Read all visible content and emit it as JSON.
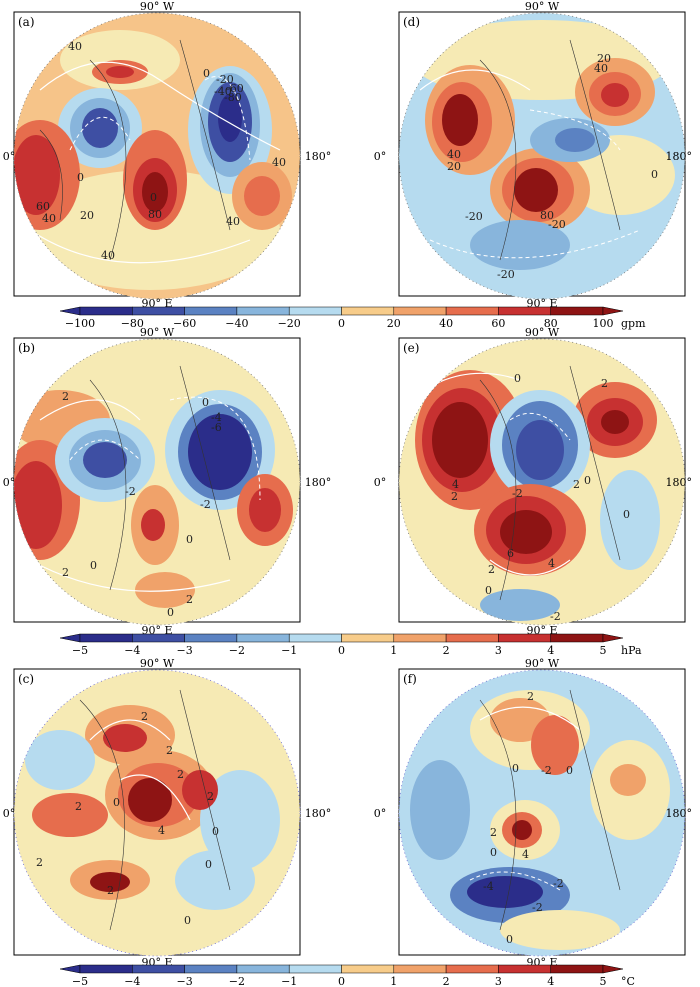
{
  "figure": {
    "rows": [
      {
        "panels": [
          {
            "letter": "(a)",
            "top_label": "90° W",
            "bottom_label": "90° E",
            "left_label": "0°",
            "right_label": "180°",
            "contour_labels": [
              "40",
              "0",
              "-20",
              "-40",
              "-60",
              "-80",
              "0",
              "40",
              "60",
              "40",
              "0",
              "20",
              "80",
              "40",
              "40"
            ]
          },
          {
            "letter": "(d)",
            "top_label": "90° W",
            "bottom_label": "90° E",
            "left_label": "0°",
            "right_label": "180°",
            "contour_labels": [
              "20",
              "40",
              "40",
              "20",
              "0",
              "-20",
              "80",
              "-20",
              "-20"
            ]
          }
        ],
        "colorbar": {
          "ticks": [
            "-100",
            "-80",
            "-60",
            "-40",
            "-20",
            "0",
            "20",
            "40",
            "60",
            "80",
            "100"
          ],
          "unit": "gpm"
        }
      },
      {
        "panels": [
          {
            "letter": "(b)",
            "top_label": "90° W",
            "bottom_label": "90° E",
            "left_label": "0°",
            "right_label": "180°",
            "contour_labels": [
              "2",
              "0",
              "-4",
              "-6",
              "-2",
              "-2",
              "0",
              "2",
              "0",
              "2",
              "0"
            ]
          },
          {
            "letter": "(e)",
            "top_label": "90° W",
            "bottom_label": "90° E",
            "left_label": "0°",
            "right_label": "180°",
            "contour_labels": [
              "0",
              "2",
              "4",
              "2",
              "-2",
              "2",
              "0",
              "6",
              "2",
              "4",
              "0",
              "-2",
              "0"
            ]
          }
        ],
        "colorbar": {
          "ticks": [
            "-5",
            "-4",
            "-3",
            "-2",
            "-1",
            "0",
            "1",
            "2",
            "3",
            "4",
            "5"
          ],
          "unit": "hPa"
        }
      },
      {
        "panels": [
          {
            "letter": "(c)",
            "top_label": "90° W",
            "bottom_label": "90° E",
            "left_label": "0°",
            "right_label": "180°",
            "contour_labels": [
              "2",
              "2",
              "2",
              "2",
              "0",
              "2",
              "4",
              "0",
              "0",
              "2",
              "0",
              "2"
            ]
          },
          {
            "letter": "(f)",
            "top_label": "90° W",
            "bottom_label": "90° E",
            "left_label": "0°",
            "right_label": "180°",
            "contour_labels": [
              "2",
              "0",
              "-2",
              "0",
              "2",
              "0",
              "4",
              "-4",
              "-2",
              "-2",
              "0"
            ]
          }
        ],
        "colorbar": {
          "ticks": [
            "-5",
            "-4",
            "-3",
            "-2",
            "-1",
            "0",
            "1",
            "2",
            "3",
            "4",
            "5"
          ],
          "unit": "°C"
        }
      }
    ],
    "colors": {
      "palette": [
        "#2b2d8a",
        "#3e4fa3",
        "#5b82c2",
        "#88b5dc",
        "#b6dbef",
        "#f6eab4",
        "#f7cc8a",
        "#f0a26a",
        "#e66d4d",
        "#c73131",
        "#8e1414"
      ],
      "land": "#333333"
    }
  }
}
